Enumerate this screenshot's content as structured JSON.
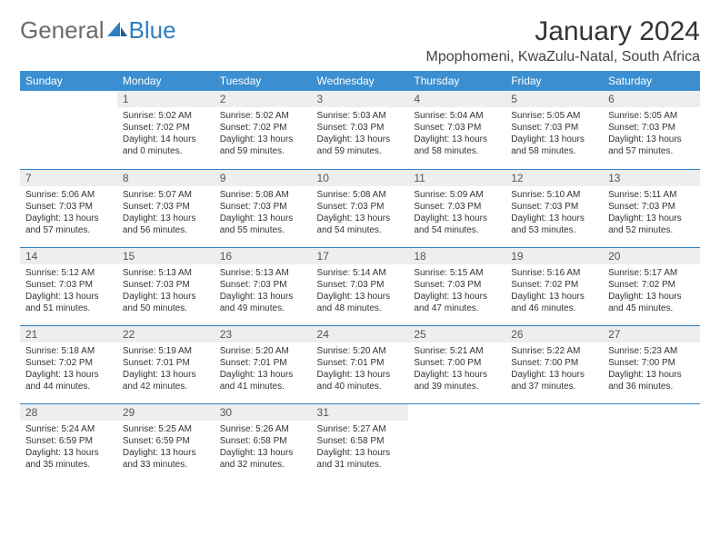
{
  "brand": {
    "part1": "General",
    "part2": "Blue"
  },
  "title": "January 2024",
  "location": "Mpophomeni, KwaZulu-Natal, South Africa",
  "colors": {
    "header_bg": "#3b8fd0",
    "header_text": "#ffffff",
    "daynum_bg": "#eceeef",
    "row_border": "#2f7fc0",
    "brand_blue": "#2f7fc0",
    "brand_gray": "#6b6b6b",
    "body_bg": "#ffffff"
  },
  "fonts": {
    "title_size": 30,
    "location_size": 16,
    "th_size": 12,
    "daynum_size": 12,
    "body_size": 10
  },
  "weekdays": [
    "Sunday",
    "Monday",
    "Tuesday",
    "Wednesday",
    "Thursday",
    "Friday",
    "Saturday"
  ],
  "weeks": [
    [
      null,
      {
        "n": "1",
        "sr": "Sunrise: 5:02 AM",
        "ss": "Sunset: 7:02 PM",
        "d1": "Daylight: 14 hours",
        "d2": "and 0 minutes."
      },
      {
        "n": "2",
        "sr": "Sunrise: 5:02 AM",
        "ss": "Sunset: 7:02 PM",
        "d1": "Daylight: 13 hours",
        "d2": "and 59 minutes."
      },
      {
        "n": "3",
        "sr": "Sunrise: 5:03 AM",
        "ss": "Sunset: 7:03 PM",
        "d1": "Daylight: 13 hours",
        "d2": "and 59 minutes."
      },
      {
        "n": "4",
        "sr": "Sunrise: 5:04 AM",
        "ss": "Sunset: 7:03 PM",
        "d1": "Daylight: 13 hours",
        "d2": "and 58 minutes."
      },
      {
        "n": "5",
        "sr": "Sunrise: 5:05 AM",
        "ss": "Sunset: 7:03 PM",
        "d1": "Daylight: 13 hours",
        "d2": "and 58 minutes."
      },
      {
        "n": "6",
        "sr": "Sunrise: 5:05 AM",
        "ss": "Sunset: 7:03 PM",
        "d1": "Daylight: 13 hours",
        "d2": "and 57 minutes."
      }
    ],
    [
      {
        "n": "7",
        "sr": "Sunrise: 5:06 AM",
        "ss": "Sunset: 7:03 PM",
        "d1": "Daylight: 13 hours",
        "d2": "and 57 minutes."
      },
      {
        "n": "8",
        "sr": "Sunrise: 5:07 AM",
        "ss": "Sunset: 7:03 PM",
        "d1": "Daylight: 13 hours",
        "d2": "and 56 minutes."
      },
      {
        "n": "9",
        "sr": "Sunrise: 5:08 AM",
        "ss": "Sunset: 7:03 PM",
        "d1": "Daylight: 13 hours",
        "d2": "and 55 minutes."
      },
      {
        "n": "10",
        "sr": "Sunrise: 5:08 AM",
        "ss": "Sunset: 7:03 PM",
        "d1": "Daylight: 13 hours",
        "d2": "and 54 minutes."
      },
      {
        "n": "11",
        "sr": "Sunrise: 5:09 AM",
        "ss": "Sunset: 7:03 PM",
        "d1": "Daylight: 13 hours",
        "d2": "and 54 minutes."
      },
      {
        "n": "12",
        "sr": "Sunrise: 5:10 AM",
        "ss": "Sunset: 7:03 PM",
        "d1": "Daylight: 13 hours",
        "d2": "and 53 minutes."
      },
      {
        "n": "13",
        "sr": "Sunrise: 5:11 AM",
        "ss": "Sunset: 7:03 PM",
        "d1": "Daylight: 13 hours",
        "d2": "and 52 minutes."
      }
    ],
    [
      {
        "n": "14",
        "sr": "Sunrise: 5:12 AM",
        "ss": "Sunset: 7:03 PM",
        "d1": "Daylight: 13 hours",
        "d2": "and 51 minutes."
      },
      {
        "n": "15",
        "sr": "Sunrise: 5:13 AM",
        "ss": "Sunset: 7:03 PM",
        "d1": "Daylight: 13 hours",
        "d2": "and 50 minutes."
      },
      {
        "n": "16",
        "sr": "Sunrise: 5:13 AM",
        "ss": "Sunset: 7:03 PM",
        "d1": "Daylight: 13 hours",
        "d2": "and 49 minutes."
      },
      {
        "n": "17",
        "sr": "Sunrise: 5:14 AM",
        "ss": "Sunset: 7:03 PM",
        "d1": "Daylight: 13 hours",
        "d2": "and 48 minutes."
      },
      {
        "n": "18",
        "sr": "Sunrise: 5:15 AM",
        "ss": "Sunset: 7:03 PM",
        "d1": "Daylight: 13 hours",
        "d2": "and 47 minutes."
      },
      {
        "n": "19",
        "sr": "Sunrise: 5:16 AM",
        "ss": "Sunset: 7:02 PM",
        "d1": "Daylight: 13 hours",
        "d2": "and 46 minutes."
      },
      {
        "n": "20",
        "sr": "Sunrise: 5:17 AM",
        "ss": "Sunset: 7:02 PM",
        "d1": "Daylight: 13 hours",
        "d2": "and 45 minutes."
      }
    ],
    [
      {
        "n": "21",
        "sr": "Sunrise: 5:18 AM",
        "ss": "Sunset: 7:02 PM",
        "d1": "Daylight: 13 hours",
        "d2": "and 44 minutes."
      },
      {
        "n": "22",
        "sr": "Sunrise: 5:19 AM",
        "ss": "Sunset: 7:01 PM",
        "d1": "Daylight: 13 hours",
        "d2": "and 42 minutes."
      },
      {
        "n": "23",
        "sr": "Sunrise: 5:20 AM",
        "ss": "Sunset: 7:01 PM",
        "d1": "Daylight: 13 hours",
        "d2": "and 41 minutes."
      },
      {
        "n": "24",
        "sr": "Sunrise: 5:20 AM",
        "ss": "Sunset: 7:01 PM",
        "d1": "Daylight: 13 hours",
        "d2": "and 40 minutes."
      },
      {
        "n": "25",
        "sr": "Sunrise: 5:21 AM",
        "ss": "Sunset: 7:00 PM",
        "d1": "Daylight: 13 hours",
        "d2": "and 39 minutes."
      },
      {
        "n": "26",
        "sr": "Sunrise: 5:22 AM",
        "ss": "Sunset: 7:00 PM",
        "d1": "Daylight: 13 hours",
        "d2": "and 37 minutes."
      },
      {
        "n": "27",
        "sr": "Sunrise: 5:23 AM",
        "ss": "Sunset: 7:00 PM",
        "d1": "Daylight: 13 hours",
        "d2": "and 36 minutes."
      }
    ],
    [
      {
        "n": "28",
        "sr": "Sunrise: 5:24 AM",
        "ss": "Sunset: 6:59 PM",
        "d1": "Daylight: 13 hours",
        "d2": "and 35 minutes."
      },
      {
        "n": "29",
        "sr": "Sunrise: 5:25 AM",
        "ss": "Sunset: 6:59 PM",
        "d1": "Daylight: 13 hours",
        "d2": "and 33 minutes."
      },
      {
        "n": "30",
        "sr": "Sunrise: 5:26 AM",
        "ss": "Sunset: 6:58 PM",
        "d1": "Daylight: 13 hours",
        "d2": "and 32 minutes."
      },
      {
        "n": "31",
        "sr": "Sunrise: 5:27 AM",
        "ss": "Sunset: 6:58 PM",
        "d1": "Daylight: 13 hours",
        "d2": "and 31 minutes."
      },
      null,
      null,
      null
    ]
  ]
}
